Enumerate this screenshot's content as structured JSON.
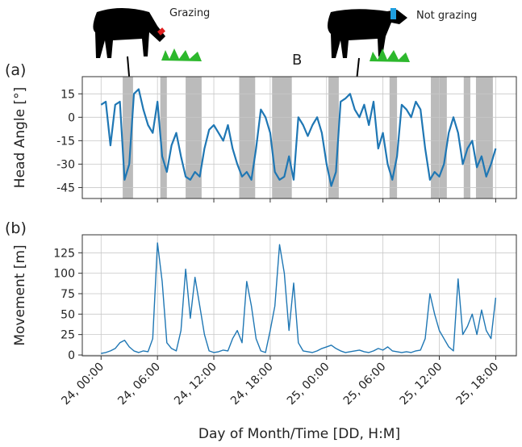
{
  "chart_data": [
    {
      "type": "line",
      "panel_label": "(a)",
      "ylabel": "Head Angle [°]",
      "annotations": [
        "Grazing",
        "Not grazing",
        "B"
      ],
      "xlim": [
        -2,
        44.2
      ],
      "ylim": [
        -52,
        26
      ],
      "yticks": [
        -45,
        -30,
        -15,
        0,
        15
      ],
      "grid": true,
      "xticks": [
        0,
        6,
        12,
        18,
        24,
        30,
        36,
        42
      ],
      "shaded_spans": [
        [
          2.3,
          3.4
        ],
        [
          6.3,
          7.0
        ],
        [
          9.0,
          10.7
        ],
        [
          14.7,
          16.4
        ],
        [
          18.2,
          20.3
        ],
        [
          24.2,
          25.3
        ],
        [
          30.7,
          31.5
        ],
        [
          35.1,
          36.8
        ],
        [
          38.6,
          39.3
        ],
        [
          39.9,
          41.7
        ]
      ],
      "shade_color": "#bbbbbb",
      "series": [
        {
          "color": "#1f77b4",
          "x": [
            0,
            0.5,
            1,
            1.5,
            2,
            2.5,
            3,
            3.5,
            4,
            4.5,
            5,
            5.5,
            6,
            6.5,
            7,
            7.5,
            8,
            8.5,
            9,
            9.5,
            10,
            10.5,
            11,
            11.5,
            12,
            12.5,
            13,
            13.5,
            14,
            14.5,
            15,
            15.5,
            16,
            16.5,
            17,
            17.5,
            18,
            18.5,
            19,
            19.5,
            20,
            20.5,
            21,
            21.5,
            22,
            22.5,
            23,
            23.5,
            24,
            24.5,
            25,
            25.5,
            26,
            26.5,
            27,
            27.5,
            28,
            28.5,
            29,
            29.5,
            30,
            30.5,
            31,
            31.5,
            32,
            32.5,
            33,
            33.5,
            34,
            34.5,
            35,
            35.5,
            36,
            36.5,
            37,
            37.5,
            38,
            38.5,
            39,
            39.5,
            40,
            40.5,
            41,
            41.5,
            42
          ],
          "values": [
            8,
            10,
            -18,
            8,
            10,
            -40,
            -30,
            15,
            18,
            5,
            -5,
            -10,
            10,
            -25,
            -35,
            -18,
            -10,
            -25,
            -38,
            -40,
            -35,
            -38,
            -20,
            -8,
            -5,
            -10,
            -15,
            -5,
            -20,
            -30,
            -38,
            -35,
            -40,
            -20,
            5,
            0,
            -10,
            -35,
            -40,
            -38,
            -25,
            -40,
            0,
            -5,
            -12,
            -5,
            0,
            -10,
            -30,
            -44,
            -35,
            10,
            12,
            15,
            5,
            0,
            8,
            -5,
            10,
            -20,
            -10,
            -30,
            -40,
            -25,
            8,
            5,
            0,
            10,
            5,
            -20,
            -40,
            -35,
            -38,
            -30,
            -10,
            0,
            -10,
            -30,
            -20,
            -15,
            -32,
            -25,
            -38,
            -30,
            -20
          ]
        }
      ]
    },
    {
      "type": "line",
      "panel_label": "(b)",
      "ylabel": "Movement [m]",
      "xlabel": "Day of Month/Time [DD, H:M]",
      "xlim": [
        -2,
        44.2
      ],
      "ylim": [
        -1,
        147
      ],
      "yticks": [
        0,
        25,
        50,
        75,
        100,
        125
      ],
      "grid": true,
      "xticks": [
        {
          "value": 0,
          "label": "24, 00:00"
        },
        {
          "value": 6,
          "label": "24, 06:00"
        },
        {
          "value": 12,
          "label": "24, 12:00"
        },
        {
          "value": 18,
          "label": "24, 18:00"
        },
        {
          "value": 24,
          "label": "25, 00:00"
        },
        {
          "value": 30,
          "label": "25, 06:00"
        },
        {
          "value": 36,
          "label": "25, 12:00"
        },
        {
          "value": 42,
          "label": "25, 18:00"
        }
      ],
      "series": [
        {
          "color": "#1f77b4",
          "x": [
            0,
            0.5,
            1,
            1.5,
            2,
            2.5,
            3,
            3.5,
            4,
            4.5,
            5,
            5.5,
            6,
            6.5,
            7,
            7.5,
            8,
            8.5,
            9,
            9.5,
            10,
            10.5,
            11,
            11.5,
            12,
            12.5,
            13,
            13.5,
            14,
            14.5,
            15,
            15.5,
            16,
            16.5,
            17,
            17.5,
            18,
            18.5,
            19,
            19.5,
            20,
            20.5,
            21,
            21.5,
            22,
            22.5,
            23,
            23.5,
            24,
            24.5,
            25,
            25.5,
            26,
            26.5,
            27,
            27.5,
            28,
            28.5,
            29,
            29.5,
            30,
            30.5,
            31,
            31.5,
            32,
            32.5,
            33,
            33.5,
            34,
            34.5,
            35,
            35.5,
            36,
            36.5,
            37,
            37.5,
            38,
            38.5,
            39,
            39.5,
            40,
            40.5,
            41,
            41.5,
            42
          ],
          "values": [
            2,
            3,
            5,
            8,
            15,
            18,
            10,
            5,
            3,
            5,
            4,
            20,
            137,
            90,
            15,
            8,
            5,
            30,
            105,
            45,
            95,
            60,
            25,
            5,
            3,
            4,
            6,
            5,
            20,
            30,
            15,
            90,
            60,
            20,
            5,
            3,
            30,
            60,
            135,
            100,
            30,
            88,
            15,
            5,
            4,
            3,
            5,
            8,
            10,
            12,
            8,
            5,
            3,
            4,
            5,
            6,
            4,
            3,
            5,
            8,
            6,
            10,
            5,
            4,
            3,
            4,
            3,
            5,
            6,
            20,
            75,
            50,
            30,
            20,
            10,
            5,
            93,
            25,
            35,
            50,
            25,
            55,
            30,
            20,
            70
          ]
        }
      ]
    }
  ]
}
